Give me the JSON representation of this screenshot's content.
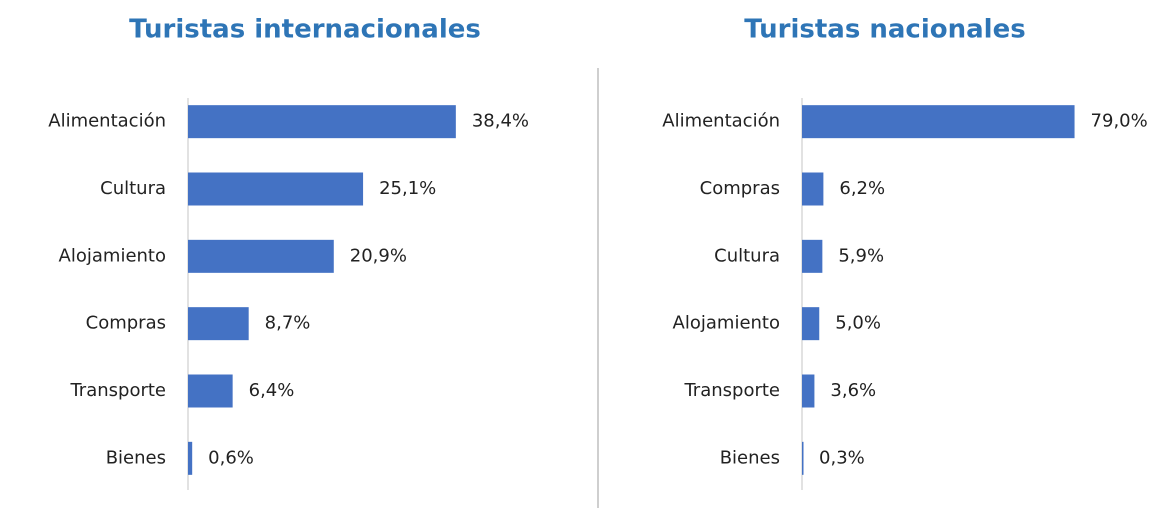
{
  "chart_data": [
    {
      "type": "bar",
      "orientation": "horizontal",
      "title": "Turistas internacionales",
      "categories": [
        "Alimentación",
        "Cultura",
        "Alojamiento",
        "Compras",
        "Transporte",
        "Bienes"
      ],
      "values": [
        38.4,
        25.1,
        20.9,
        8.7,
        6.4,
        0.6
      ],
      "value_labels": [
        "38,4%",
        "25,1%",
        "20,9%",
        "8,7%",
        "6,4%",
        "0,6%"
      ],
      "color": "#4472c4",
      "xlim": [
        0,
        40
      ]
    },
    {
      "type": "bar",
      "orientation": "horizontal",
      "title": "Turistas nacionales",
      "categories": [
        "Alimentación",
        "Compras",
        "Cultura",
        "Alojamiento",
        "Transporte",
        "Bienes"
      ],
      "values": [
        79.0,
        6.2,
        5.9,
        5.0,
        3.6,
        0.3
      ],
      "value_labels": [
        "79,0%",
        "6,2%",
        "5,9%",
        "5,0%",
        "3,6%",
        "0,3%"
      ],
      "color": "#4472c4",
      "xlim": [
        0,
        80
      ]
    }
  ]
}
